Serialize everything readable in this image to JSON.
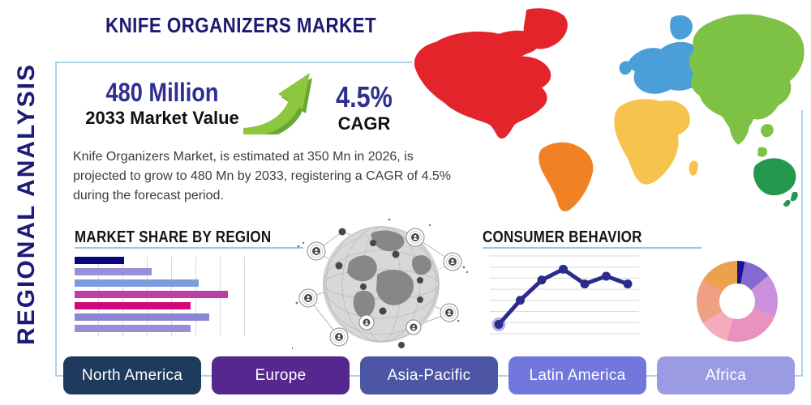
{
  "page": {
    "title": "KNIFE ORGANIZERS MARKET",
    "side_label": "REGIONAL ANALYSIS"
  },
  "stats": {
    "market_value": "480 Million",
    "market_value_label": "2033 Market Value",
    "cagr_value": "4.5%",
    "cagr_label": "CAGR",
    "arrow_color": "#8dc63f",
    "arrow_shadow_color": "#69a82f"
  },
  "description": "Knife Organizers Market, is estimated at 350 Mn in 2026, is\nprojected to grow to 480 Mn by 2033, registering a CAGR of 4.5%\nduring the forecast period.",
  "colors": {
    "title_navy": "#1b1b70",
    "border_blue": "#a9d4e8",
    "underline_blue": "#8ecbe2"
  },
  "chart_data": [
    {
      "id": "market_share_by_region",
      "type": "bar",
      "title": "MARKET SHARE BY REGION",
      "orientation": "horizontal",
      "values": [
        29,
        45,
        73,
        90,
        68,
        79,
        68
      ],
      "unit": "percent-of-axis-width",
      "bar_colors": [
        "#060683",
        "#9b8ed6",
        "#7d9ce0",
        "#bb3fa5",
        "#d4067c",
        "#8a85d5",
        "#9a8cd8"
      ],
      "grid": "vertical",
      "axis_labels_visible": false
    },
    {
      "id": "consumer_behavior",
      "type": "line",
      "title": "CONSUMER BEHAVIOR",
      "x": [
        1,
        2,
        3,
        4,
        5,
        6,
        7
      ],
      "values": [
        12,
        43,
        69,
        83,
        64,
        74,
        64
      ],
      "ylim": [
        0,
        100
      ],
      "line_color": "#2b2b8c",
      "first_point_halo_color": "#b2a2e2",
      "grid": "horizontal",
      "gridline_count": 8,
      "axis_labels_visible": false
    },
    {
      "id": "regional_share_donut",
      "type": "pie",
      "values": [
        3,
        11,
        17,
        23,
        12,
        18,
        16
      ],
      "colors": [
        "#1a1290",
        "#8469d0",
        "#ca92dd",
        "#e892c0",
        "#f3abbd",
        "#f0a083",
        "#eba14e"
      ],
      "donut": true
    }
  ],
  "map": {
    "regions": [
      {
        "id": "north_america",
        "name": "North America",
        "color": "#e3242b"
      },
      {
        "id": "south_america",
        "name": "South America",
        "color": "#f08124"
      },
      {
        "id": "europe",
        "name": "Europe",
        "color": "#4b9fd8"
      },
      {
        "id": "africa",
        "name": "Africa",
        "color": "#f6c44e"
      },
      {
        "id": "asia",
        "name": "Asia",
        "color": "#7dc244"
      },
      {
        "id": "oceania",
        "name": "Australia & Oceania",
        "color": "#23984d"
      }
    ]
  },
  "buttons": [
    {
      "label": "North America",
      "color": "#1e3a5c"
    },
    {
      "label": "Europe",
      "color": "#56278f"
    },
    {
      "label": "Asia-Pacific",
      "color": "#4d55a5"
    },
    {
      "label": "Latin America",
      "color": "#7277dd"
    },
    {
      "label": "Africa",
      "color": "#9b9be4"
    }
  ]
}
